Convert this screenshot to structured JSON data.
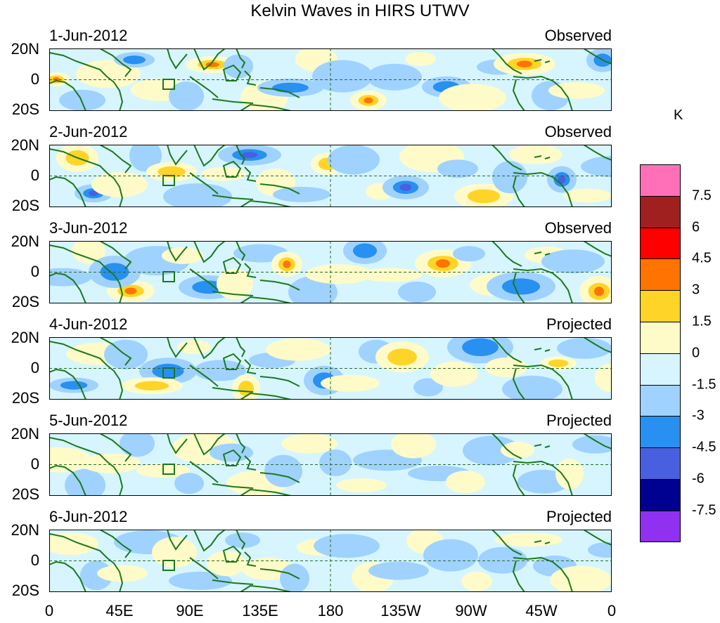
{
  "title": "Kelvin Waves in HIRS UTWV",
  "colors": {
    "land": "#1a7a1a",
    "warm": [
      "#fffbc8",
      "#ffd428",
      "#ff7400",
      "#ff0000",
      "#a02020",
      "#ff70b8"
    ],
    "cool": [
      "#d6f5ff",
      "#a0d2ff",
      "#2890f0",
      "#4860e0",
      "#000090",
      "#9030f0"
    ]
  },
  "panels": [
    {
      "date": "1-Jun-2012",
      "status": "Observed"
    },
    {
      "date": "2-Jun-2012",
      "status": "Observed"
    },
    {
      "date": "3-Jun-2012",
      "status": "Observed"
    },
    {
      "date": "4-Jun-2012",
      "status": "Projected"
    },
    {
      "date": "5-Jun-2012",
      "status": "Projected"
    },
    {
      "date": "6-Jun-2012",
      "status": "Projected"
    }
  ],
  "lat_labels": [
    "20N",
    "0",
    "20S"
  ],
  "lon_labels": [
    "0",
    "45E",
    "90E",
    "135E",
    "180",
    "135W",
    "90W",
    "45W",
    "0"
  ],
  "colorbar": {
    "units": "K",
    "boxes": [
      "#ff70b8",
      "#a02020",
      "#ff0000",
      "#ff7400",
      "#ffd428",
      "#fffbc8",
      "#d6f5ff",
      "#a0d2ff",
      "#2890f0",
      "#4860e0",
      "#000090",
      "#9030f0"
    ],
    "labels": [
      "7.5",
      "6",
      "4.5",
      "3",
      "1.5",
      "0",
      "-1.5",
      "-3",
      "-4.5",
      "-6",
      "-7.5"
    ]
  }
}
